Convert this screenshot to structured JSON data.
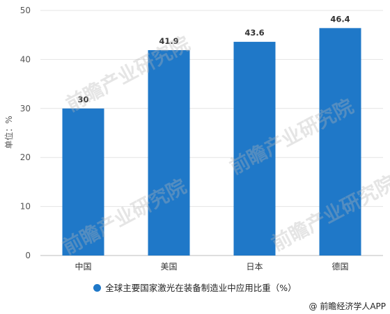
{
  "chart_data": {
    "type": "bar",
    "categories": [
      "中国",
      "美国",
      "日本",
      "德国"
    ],
    "values": [
      30,
      41.9,
      43.6,
      46.4
    ],
    "value_labels": [
      "30",
      "41.9",
      "43.6",
      "46.4"
    ],
    "ylabel": "单位：%",
    "ylim": [
      0,
      50
    ],
    "yticks": [
      "0",
      "10",
      "20",
      "30",
      "40",
      "50"
    ],
    "grid": true,
    "legend": {
      "position": "bottom",
      "label": "全球主要国家激光在装备制造业中应用比重（%）"
    },
    "bar_color": "#1f78c8"
  },
  "source": "@ 前瞻经济学人APP",
  "watermark": "前瞻产业研究院"
}
